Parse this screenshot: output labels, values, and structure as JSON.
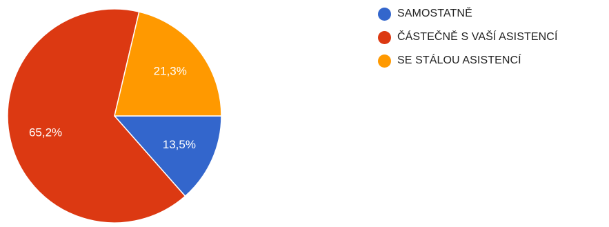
{
  "chart_data": {
    "type": "pie",
    "categories": [
      "SAMOSTATNĚ",
      "ČÁSTEČNĚ S VAŠÍ ASISTENCÍ",
      "SE STÁLOU ASISTENCÍ"
    ],
    "values": [
      13.5,
      65.2,
      21.3
    ],
    "value_labels": [
      "13,5%",
      "65,2%",
      "21,3%"
    ],
    "colors": [
      "#3366cc",
      "#dc3912",
      "#ff9900"
    ],
    "title": "",
    "legend_position": "right"
  }
}
